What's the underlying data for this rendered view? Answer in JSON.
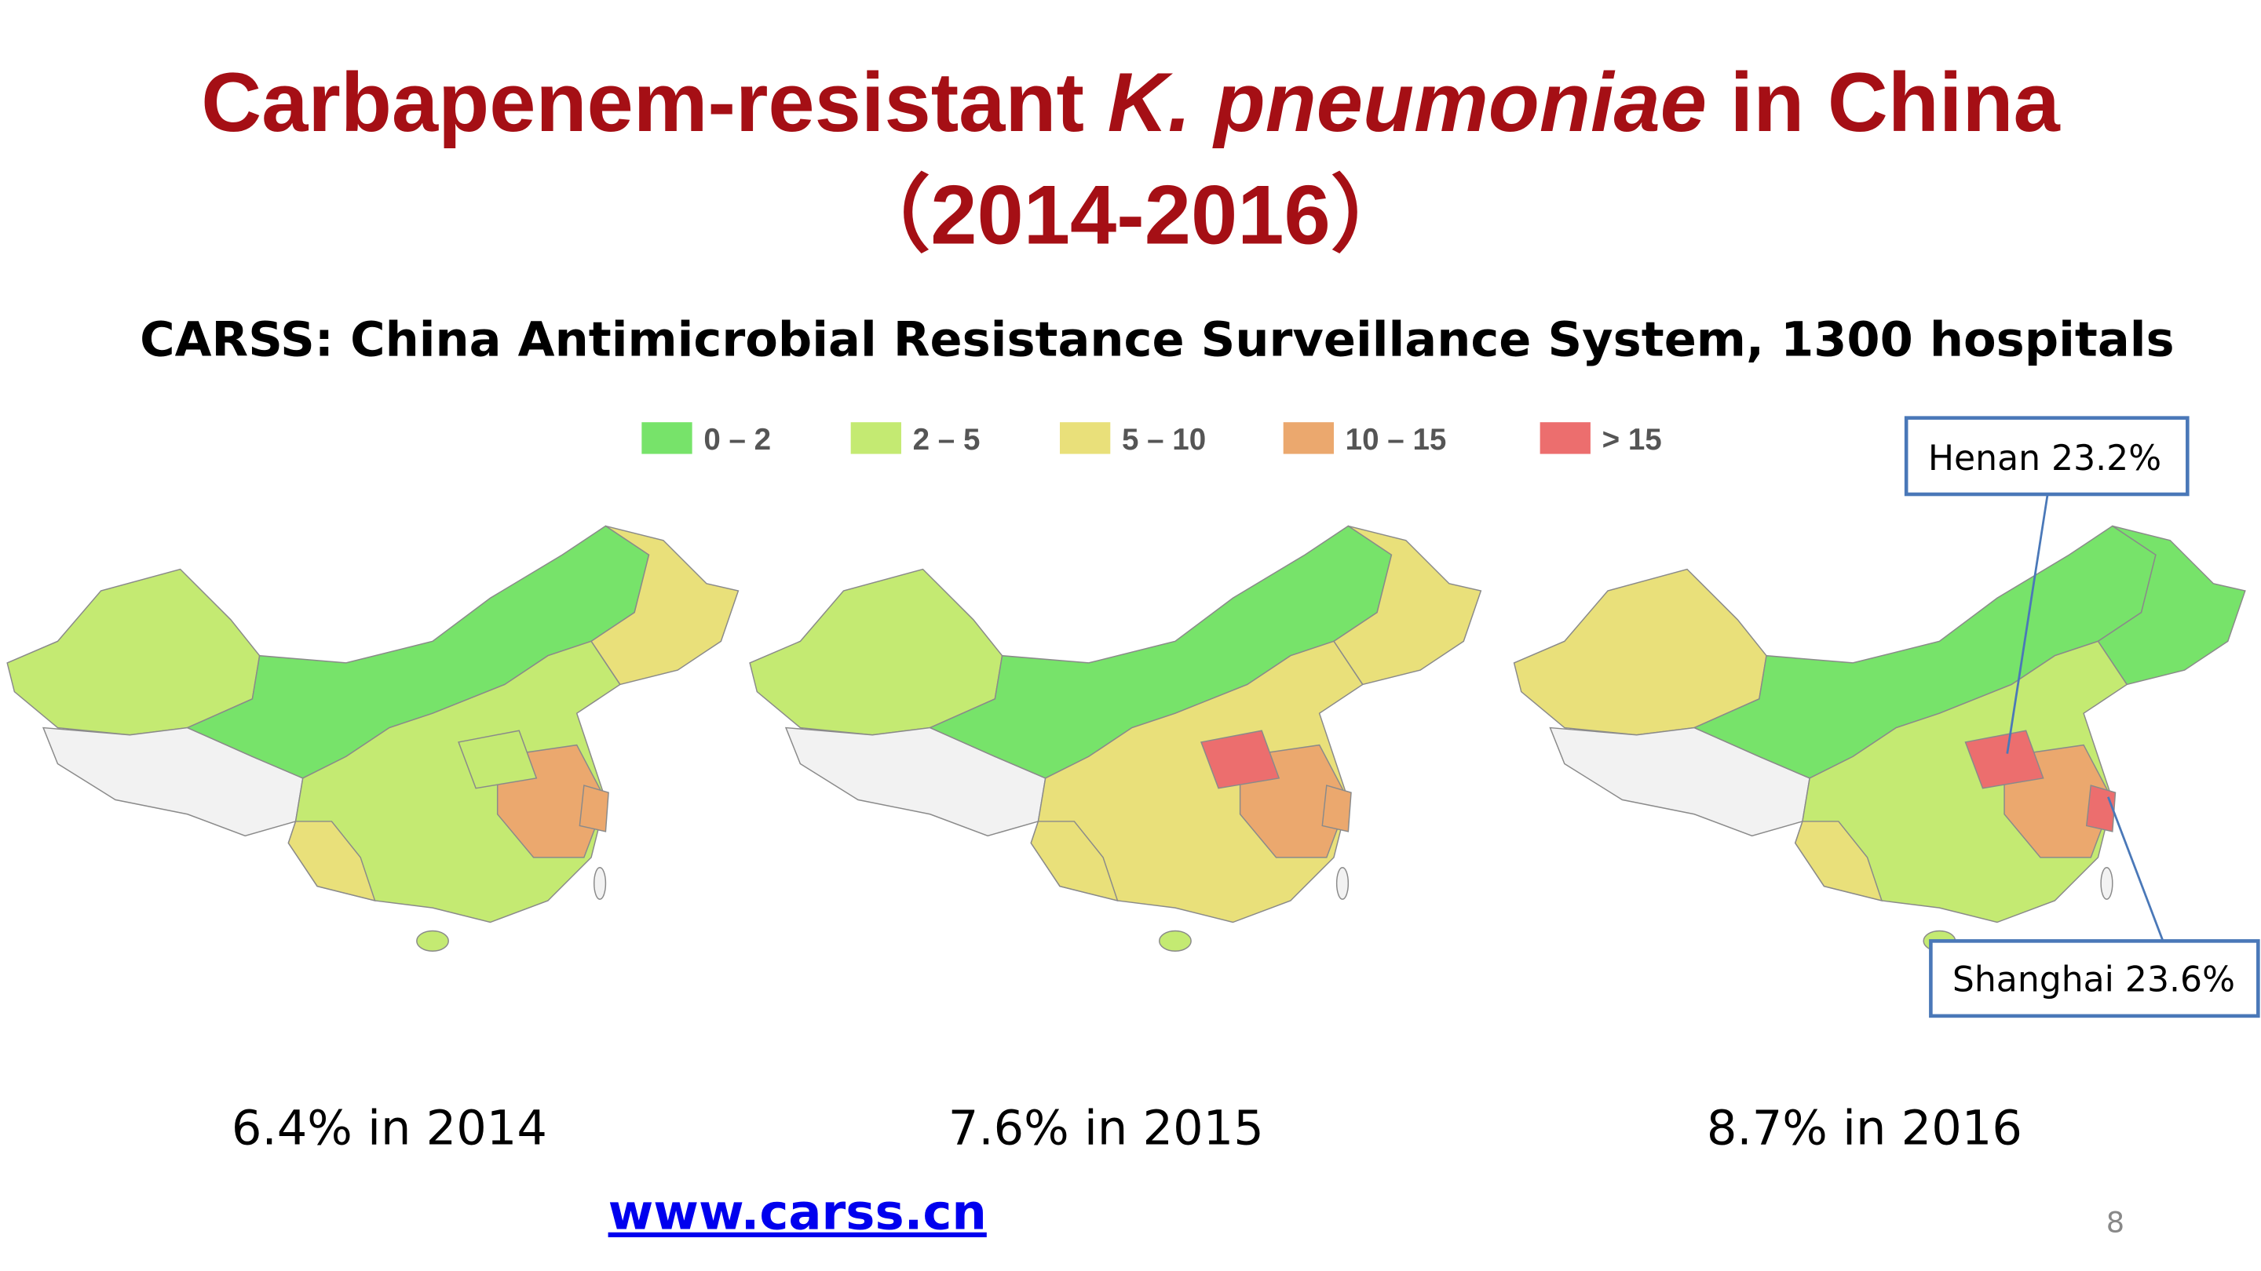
{
  "slide": {
    "title": {
      "part1": "Carbapenem-resistant ",
      "italic": "K. pneumoniae",
      "part2": " in China",
      "line2": "（2014-2016）"
    },
    "subtitle": "CARSS: China Antimicrobial Resistance Surveillance System, 1300 hospitals",
    "legend": [
      {
        "label": "0 – 2",
        "color": "#77e36a"
      },
      {
        "label": "2 – 5",
        "color": "#c4ea72"
      },
      {
        "label": "5 – 10",
        "color": "#e9e07a"
      },
      {
        "label": "10 – 15",
        "color": "#eba86e"
      },
      {
        "label": "> 15",
        "color": "#ec6e6e"
      }
    ],
    "captions": [
      "6.4% in 2014",
      "7.6% in 2015",
      "8.7% in 2016"
    ],
    "annotations": [
      "Henan 23.2%",
      "Shanghai 23.6%"
    ],
    "url": "www.carss.cn",
    "page_number": "8"
  }
}
